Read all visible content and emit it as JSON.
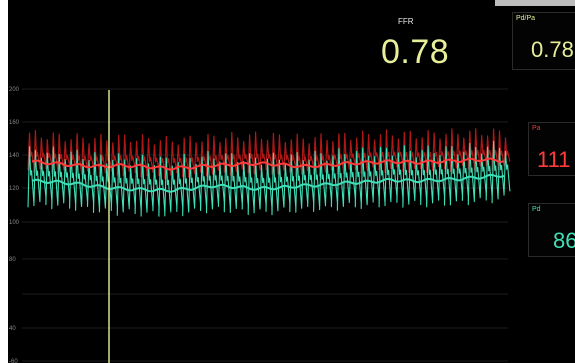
{
  "ffr": {
    "label": "FFR",
    "value": "0.78"
  },
  "panels": {
    "pdpa": {
      "label": "Pd/Pa",
      "value": "0.78"
    },
    "pa": {
      "label": "Pa",
      "value": "111"
    },
    "pd": {
      "label": "Pd",
      "value": "86"
    }
  },
  "colors": {
    "pa": "#ff3b3b",
    "pa_dark": "#b01818",
    "pd": "#3fe0b8",
    "cursor": "#e8ef9a",
    "grid": "#3a3a3a"
  },
  "chart_data": {
    "type": "line",
    "ylim": [
      -60,
      200
    ],
    "yticks": [
      "200",
      "160",
      "140",
      "120",
      "100",
      "80",
      "40",
      "-60"
    ],
    "grid": true,
    "series": [
      {
        "name": "Pa",
        "pulsatile": true,
        "mean": [
          120,
          118,
          116,
          115,
          116,
          115,
          113,
          114,
          116,
          117,
          118,
          117,
          115,
          116,
          118,
          119,
          120,
          119,
          120,
          121,
          122,
          121
        ]
      },
      {
        "name": "Pd",
        "pulsatile": true,
        "mean": [
          100,
          99,
          97,
          94,
          92,
          91,
          90,
          92,
          95,
          94,
          92,
          93,
          95,
          96,
          98,
          99,
          101,
          100,
          101,
          102,
          104,
          106
        ]
      }
    ],
    "cursor_x_index": 4
  }
}
